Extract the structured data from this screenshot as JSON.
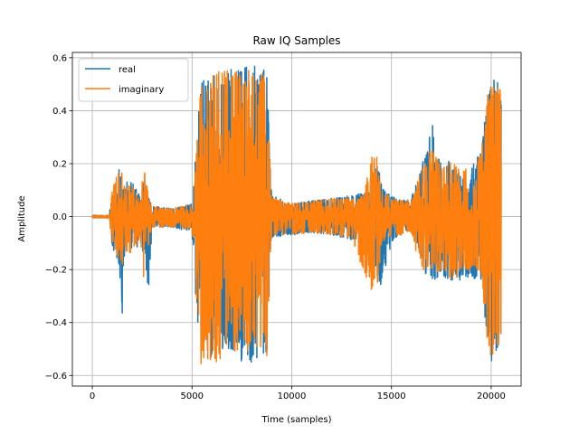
{
  "chart_data": {
    "type": "line",
    "title": "Raw IQ Samples",
    "xlabel": "Time (samples)",
    "ylabel": "Amplitude",
    "xlim": [
      -1000,
      21500
    ],
    "ylim": [
      -0.64,
      0.62
    ],
    "xticks": [
      0,
      5000,
      10000,
      15000,
      20000
    ],
    "xtick_labels": [
      "0",
      "5000",
      "10000",
      "15000",
      "20000"
    ],
    "yticks": [
      -0.6,
      -0.4,
      -0.2,
      0.0,
      0.2,
      0.4,
      0.6
    ],
    "ytick_labels": [
      "−0.6",
      "−0.4",
      "−0.2",
      "0.0",
      "0.2",
      "0.4",
      "0.6"
    ],
    "grid": true,
    "legend_position": "upper-left",
    "series": [
      {
        "name": "real",
        "color": "#1f77b4",
        "x": [
          0,
          850,
          1000,
          1300,
          1500,
          1600,
          2000,
          2400,
          2600,
          2800,
          3000,
          4000,
          5000,
          5200,
          5450,
          5550,
          5700,
          6000,
          6500,
          7000,
          7500,
          8000,
          8500,
          8750,
          8950,
          9000,
          10000,
          11000,
          12000,
          13000,
          13600,
          14000,
          14300,
          14500,
          15000,
          15500,
          16000,
          16500,
          16800,
          17000,
          17500,
          18000,
          18500,
          19000,
          19500,
          19800,
          20000,
          20200,
          20400,
          20500
        ],
        "env_upper": [
          0.005,
          0.005,
          0.12,
          0.22,
          0.18,
          0.14,
          0.14,
          0.08,
          0.14,
          0.08,
          0.04,
          0.03,
          0.05,
          0.25,
          0.54,
          0.57,
          0.52,
          0.57,
          0.56,
          0.57,
          0.56,
          0.57,
          0.57,
          0.56,
          0.12,
          0.08,
          0.05,
          0.06,
          0.07,
          0.08,
          0.09,
          0.1,
          0.22,
          0.12,
          0.08,
          0.06,
          0.07,
          0.2,
          0.25,
          0.38,
          0.21,
          0.21,
          0.16,
          0.18,
          0.26,
          0.45,
          0.55,
          0.5,
          0.53,
          0.48
        ],
        "env_lower": [
          -0.005,
          -0.005,
          -0.12,
          -0.18,
          -0.37,
          -0.15,
          -0.16,
          -0.09,
          -0.16,
          -0.3,
          -0.04,
          -0.04,
          -0.06,
          -0.32,
          -0.55,
          -0.54,
          -0.48,
          -0.54,
          -0.5,
          -0.5,
          -0.55,
          -0.56,
          -0.52,
          -0.55,
          -0.1,
          -0.08,
          -0.07,
          -0.06,
          -0.07,
          -0.09,
          -0.08,
          -0.1,
          -0.32,
          -0.25,
          -0.1,
          -0.07,
          -0.06,
          -0.16,
          -0.25,
          -0.25,
          -0.22,
          -0.25,
          -0.24,
          -0.24,
          -0.24,
          -0.5,
          -0.56,
          -0.5,
          -0.53,
          -0.45
        ]
      },
      {
        "name": "imaginary",
        "color": "#ff7f0e",
        "x": [
          0,
          850,
          1000,
          1300,
          1500,
          1600,
          2000,
          2400,
          2600,
          2800,
          3000,
          4000,
          5000,
          5200,
          5450,
          5550,
          5700,
          6000,
          6500,
          7000,
          7500,
          8000,
          8500,
          8750,
          8950,
          9000,
          10000,
          11000,
          12000,
          13000,
          13600,
          14000,
          14300,
          14500,
          15000,
          15500,
          16000,
          16500,
          16800,
          17000,
          17500,
          18000,
          18500,
          19000,
          19500,
          19800,
          20000,
          20200,
          20400,
          20500
        ],
        "env_upper": [
          0.005,
          0.005,
          0.1,
          0.18,
          0.2,
          0.12,
          0.12,
          0.07,
          0.2,
          0.09,
          0.04,
          0.03,
          0.05,
          0.22,
          0.52,
          0.55,
          0.5,
          0.55,
          0.56,
          0.55,
          0.55,
          0.56,
          0.55,
          0.55,
          0.1,
          0.07,
          0.05,
          0.06,
          0.07,
          0.07,
          0.08,
          0.23,
          0.23,
          0.1,
          0.07,
          0.06,
          0.06,
          0.18,
          0.22,
          0.26,
          0.2,
          0.22,
          0.18,
          0.2,
          0.24,
          0.46,
          0.52,
          0.47,
          0.51,
          0.46
        ],
        "env_lower": [
          -0.005,
          -0.005,
          -0.1,
          -0.16,
          -0.2,
          -0.13,
          -0.14,
          -0.08,
          -0.26,
          -0.14,
          -0.04,
          -0.04,
          -0.05,
          -0.28,
          -0.56,
          -0.56,
          -0.52,
          -0.58,
          -0.53,
          -0.52,
          -0.5,
          -0.52,
          -0.5,
          -0.53,
          -0.1,
          -0.08,
          -0.07,
          -0.06,
          -0.07,
          -0.08,
          -0.22,
          -0.28,
          -0.27,
          -0.1,
          -0.08,
          -0.07,
          -0.06,
          -0.22,
          -0.2,
          -0.2,
          -0.22,
          -0.24,
          -0.22,
          -0.2,
          -0.22,
          -0.48,
          -0.55,
          -0.5,
          -0.5,
          -0.45
        ]
      }
    ]
  }
}
